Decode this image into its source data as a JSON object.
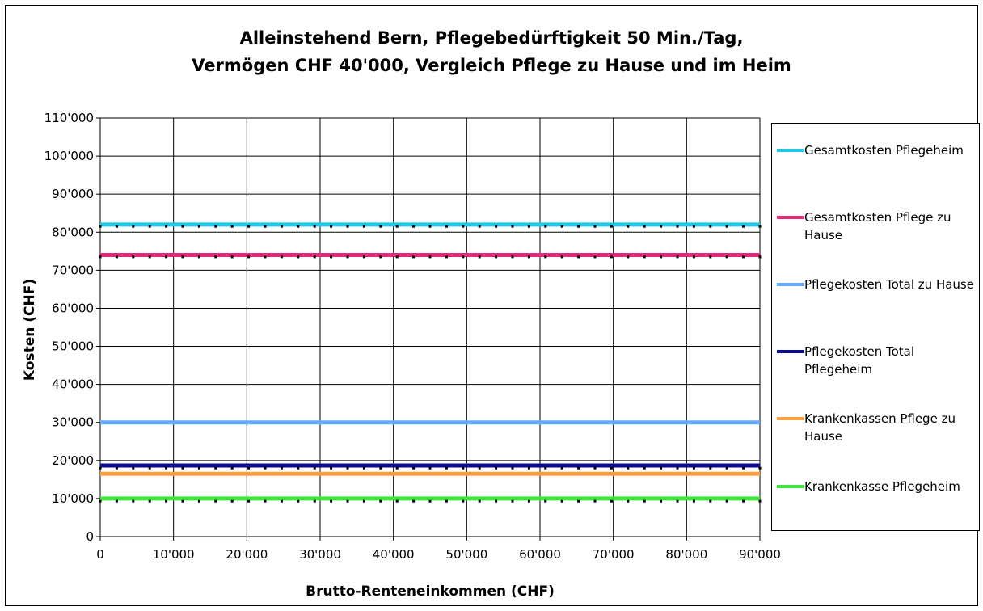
{
  "chart_data": {
    "type": "line",
    "title": [
      "Alleinstehend Bern, Pflegebedürftigkeit 50 Min./Tag,",
      "Vermögen CHF 40'000, Vergleich Pflege zu Hause und im Heim"
    ],
    "xlabel": "Brutto-Renteneinkommen (CHF)",
    "ylabel": "Kosten (CHF)",
    "xlim": [
      0,
      90000
    ],
    "ylim": [
      0,
      110000
    ],
    "x_ticks": [
      0,
      10000,
      20000,
      30000,
      40000,
      50000,
      60000,
      70000,
      80000,
      90000
    ],
    "x_tick_labels": [
      "0",
      "10'000",
      "20'000",
      "30'000",
      "40'000",
      "50'000",
      "60'000",
      "70'000",
      "80'000",
      "90'000"
    ],
    "y_ticks": [
      0,
      10000,
      20000,
      30000,
      40000,
      50000,
      60000,
      70000,
      80000,
      90000,
      100000,
      110000
    ],
    "y_tick_labels": [
      "0",
      "10'000",
      "20'000",
      "30'000",
      "40'000",
      "50'000",
      "60'000",
      "70'000",
      "80'000",
      "90'000",
      "100'000",
      "110'000"
    ],
    "grid": true,
    "legend_position": "right",
    "x": [
      0,
      90000
    ],
    "series": [
      {
        "name": "Gesamtkosten Pflegeheim",
        "color": "#1ec8e6",
        "values": [
          82000,
          82000
        ],
        "marker_values": [
          81500,
          81500
        ]
      },
      {
        "name": "Gesamtkosten Pflege zu Hause",
        "color": "#e6287a",
        "values": [
          74000,
          74000
        ],
        "marker_values": [
          73500,
          73500
        ]
      },
      {
        "name": "Pflegekosten Total zu Hause",
        "color": "#66aaff",
        "values": [
          30000,
          30000
        ]
      },
      {
        "name": "Pflegekosten Total Pflegeheim",
        "color": "#0a0a96",
        "values": [
          18700,
          18700
        ],
        "marker_values": [
          18000,
          18000
        ]
      },
      {
        "name": "Krankenkassen Pflege zu Hause",
        "color": "#ffa040",
        "values": [
          16500,
          16500
        ]
      },
      {
        "name": "Krankenkasse Pflegeheim",
        "color": "#3ee63e",
        "values": [
          10000,
          10000
        ],
        "marker_values": [
          9300,
          9300
        ]
      }
    ]
  }
}
